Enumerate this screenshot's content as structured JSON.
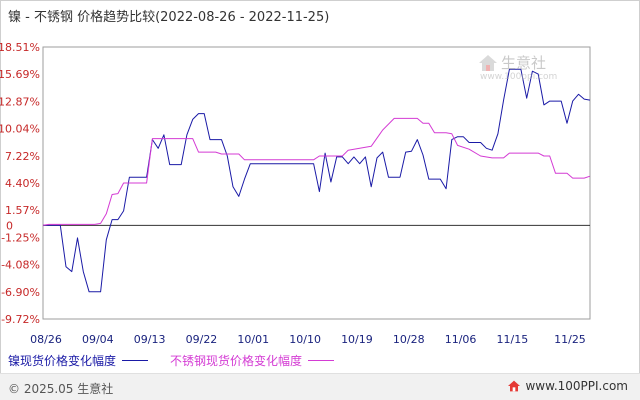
{
  "title": "镍 - 不锈钢 价格趋势比较(2022-08-26 - 2022-11-25)",
  "legend": {
    "series1": "镍现货价格变化幅度",
    "series2": "不锈钢现货价格变化幅度"
  },
  "watermark": {
    "brand": "生意社",
    "url": "www.100ppi.com"
  },
  "footer": {
    "copyright": "© 2025.05 生意社",
    "site": "www.100PPI.com"
  },
  "colors": {
    "series1": "#1a1aa6",
    "series2": "#d43bd4",
    "ytick": "#c62828",
    "xtick": "#1a237e",
    "grid": "#d8d8d8"
  },
  "chart_data": {
    "type": "line",
    "y_ticks": [
      "18.51%",
      "15.69%",
      "12.87%",
      "10.04%",
      "7.22%",
      "4.40%",
      "1.57%",
      "-1.25%",
      "-4.08%",
      "-6.90%",
      "-9.72%"
    ],
    "y_tick_values": [
      18.51,
      15.69,
      12.87,
      10.04,
      7.22,
      4.4,
      1.57,
      -1.25,
      -4.08,
      -6.9,
      -9.72
    ],
    "x_ticks": [
      "08/26",
      "09/04",
      "09/13",
      "09/22",
      "10/01",
      "10/10",
      "10/19",
      "10/28",
      "11/06",
      "11/15",
      "11/25"
    ],
    "x_tick_values": [
      0,
      9,
      18,
      27,
      36,
      45,
      54,
      63,
      72,
      81,
      91
    ],
    "zero_label": "0",
    "ylim": [
      -9.72,
      18.51
    ],
    "xlim": [
      0,
      91
    ],
    "series": [
      {
        "name": "镍现货价格变化幅度",
        "color": "#1a1aa6",
        "points": [
          [
            0,
            0
          ],
          [
            3,
            0
          ],
          [
            4,
            -4.3
          ],
          [
            5,
            -4.8
          ],
          [
            6,
            -1.3
          ],
          [
            7,
            -4.8
          ],
          [
            8,
            -6.9
          ],
          [
            9,
            -6.9
          ],
          [
            10,
            -6.9
          ],
          [
            11,
            -1.5
          ],
          [
            12,
            0.6
          ],
          [
            13,
            0.6
          ],
          [
            14,
            1.5
          ],
          [
            15,
            5.0
          ],
          [
            16,
            5.0
          ],
          [
            17,
            5.0
          ],
          [
            18,
            5.0
          ],
          [
            19,
            8.9
          ],
          [
            20,
            8.0
          ],
          [
            21,
            9.4
          ],
          [
            22,
            6.3
          ],
          [
            23,
            6.3
          ],
          [
            24,
            6.3
          ],
          [
            25,
            9.4
          ],
          [
            26,
            11.0
          ],
          [
            27,
            11.6
          ],
          [
            28,
            11.6
          ],
          [
            29,
            8.9
          ],
          [
            30,
            8.9
          ],
          [
            31,
            8.9
          ],
          [
            32,
            7.2
          ],
          [
            33,
            4.0
          ],
          [
            34,
            3.0
          ],
          [
            35,
            4.8
          ],
          [
            36,
            6.4
          ],
          [
            37,
            6.4
          ],
          [
            38,
            6.4
          ],
          [
            39,
            6.4
          ],
          [
            40,
            6.4
          ],
          [
            41,
            6.4
          ],
          [
            42,
            6.4
          ],
          [
            43,
            6.4
          ],
          [
            44,
            6.4
          ],
          [
            45,
            6.4
          ],
          [
            46,
            6.4
          ],
          [
            47,
            6.4
          ],
          [
            48,
            3.5
          ],
          [
            49,
            7.5
          ],
          [
            50,
            4.5
          ],
          [
            51,
            7.1
          ],
          [
            52,
            7.1
          ],
          [
            53,
            6.4
          ],
          [
            54,
            7.1
          ],
          [
            55,
            6.4
          ],
          [
            56,
            7.1
          ],
          [
            57,
            4.0
          ],
          [
            58,
            7.0
          ],
          [
            59,
            7.6
          ],
          [
            60,
            5.0
          ],
          [
            61,
            5.0
          ],
          [
            62,
            5.0
          ],
          [
            63,
            7.6
          ],
          [
            64,
            7.7
          ],
          [
            65,
            8.9
          ],
          [
            66,
            7.3
          ],
          [
            67,
            4.8
          ],
          [
            68,
            4.8
          ],
          [
            69,
            4.8
          ],
          [
            70,
            3.8
          ],
          [
            71,
            8.9
          ],
          [
            72,
            9.2
          ],
          [
            73,
            9.2
          ],
          [
            74,
            8.6
          ],
          [
            75,
            8.6
          ],
          [
            76,
            8.6
          ],
          [
            77,
            8.0
          ],
          [
            78,
            7.8
          ],
          [
            79,
            9.5
          ],
          [
            80,
            13.0
          ],
          [
            81,
            16.2
          ],
          [
            82,
            16.2
          ],
          [
            83,
            16.2
          ],
          [
            84,
            13.2
          ],
          [
            85,
            16.0
          ],
          [
            86,
            15.7
          ],
          [
            87,
            12.5
          ],
          [
            88,
            12.9
          ],
          [
            89,
            12.9
          ],
          [
            90,
            12.9
          ],
          [
            91,
            10.6
          ],
          [
            92,
            12.9
          ],
          [
            93,
            13.6
          ],
          [
            94,
            13.1
          ],
          [
            95,
            13.0
          ]
        ]
      },
      {
        "name": "不锈钢现货价格变化幅度",
        "color": "#d43bd4",
        "points": [
          [
            0,
            0
          ],
          [
            1,
            0.1
          ],
          [
            9,
            0.1
          ],
          [
            10,
            0.2
          ],
          [
            11,
            1.2
          ],
          [
            12,
            3.2
          ],
          [
            13,
            3.3
          ],
          [
            14,
            4.4
          ],
          [
            18,
            4.4
          ],
          [
            19,
            9.0
          ],
          [
            26,
            9.0
          ],
          [
            27,
            7.6
          ],
          [
            30,
            7.6
          ],
          [
            31,
            7.4
          ],
          [
            34,
            7.4
          ],
          [
            35,
            6.8
          ],
          [
            47,
            6.8
          ],
          [
            48,
            7.2
          ],
          [
            52,
            7.2
          ],
          [
            53,
            7.8
          ],
          [
            57,
            8.2
          ],
          [
            59,
            9.9
          ],
          [
            61,
            11.1
          ],
          [
            65,
            11.1
          ],
          [
            66,
            10.6
          ],
          [
            67,
            10.6
          ],
          [
            68,
            9.6
          ],
          [
            70,
            9.6
          ],
          [
            71,
            9.5
          ],
          [
            72,
            8.3
          ],
          [
            74,
            7.9
          ],
          [
            76,
            7.2
          ],
          [
            78,
            7.0
          ],
          [
            80,
            7.0
          ],
          [
            81,
            7.5
          ],
          [
            86,
            7.5
          ],
          [
            87,
            7.2
          ],
          [
            88,
            7.2
          ],
          [
            89,
            5.4
          ],
          [
            91,
            5.4
          ],
          [
            92,
            4.9
          ],
          [
            94,
            4.9
          ],
          [
            95,
            5.1
          ]
        ]
      }
    ],
    "grid": true,
    "legend_position": "bottom-left"
  }
}
